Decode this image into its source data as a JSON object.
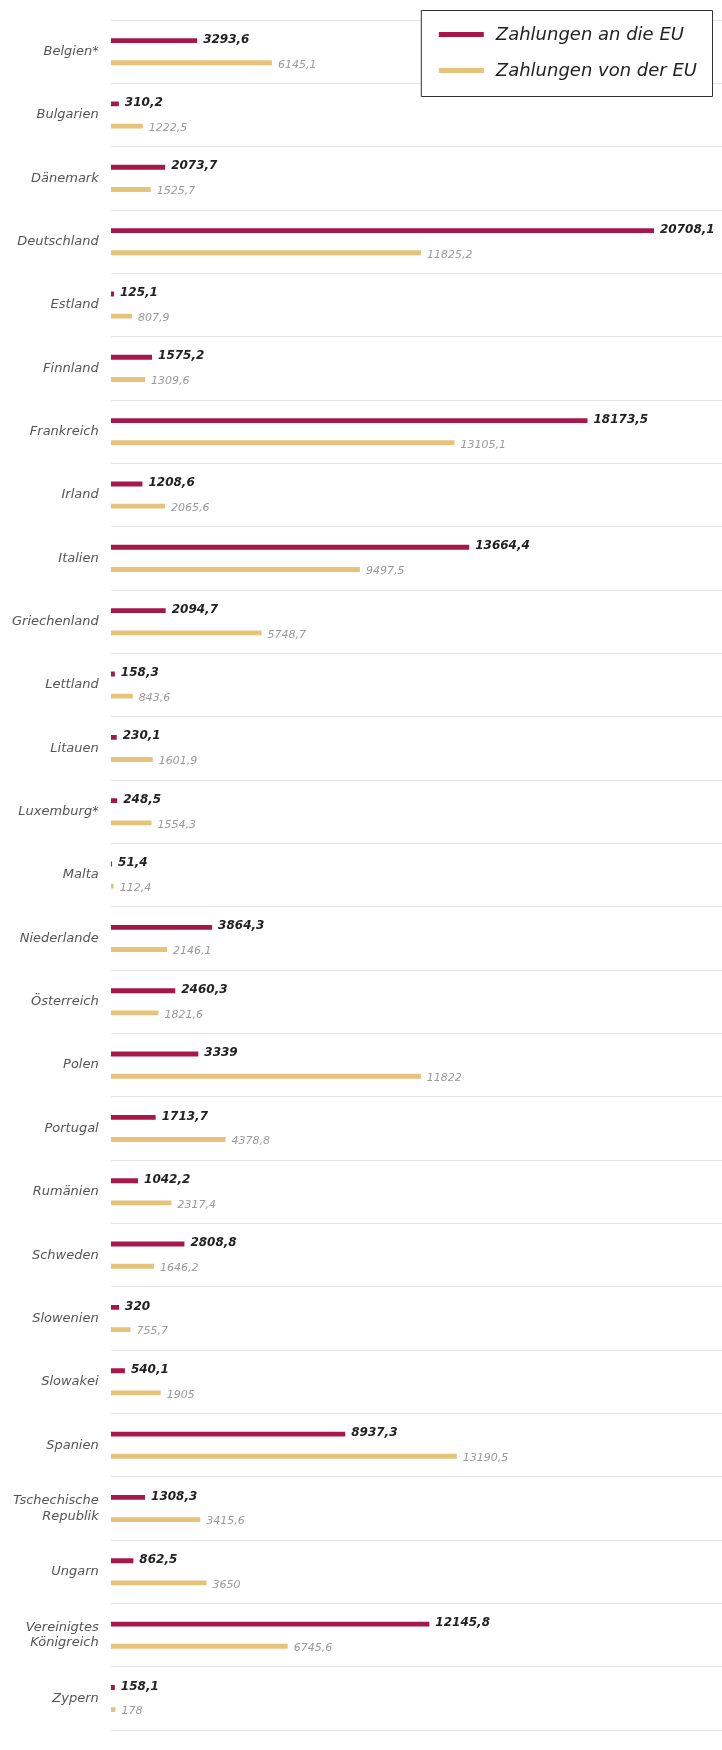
{
  "chart_data": {
    "type": "bar",
    "orientation": "horizontal",
    "categories": [
      "Belgien*",
      "Bulgarien",
      "Dänemark",
      "Deutschland",
      "Estland",
      "Finnland",
      "Frankreich",
      "Irland",
      "Italien",
      "Griechenland",
      "Lettland",
      "Litauen",
      "Luxemburg*",
      "Malta",
      "Niederlande",
      "Österreich",
      "Polen",
      "Portugal",
      "Rumänien",
      "Schweden",
      "Slowenien",
      "Slowakei",
      "Spanien",
      "Tschechische Republik",
      "Ungarn",
      "Vereinigtes Königreich",
      "Zypern"
    ],
    "series": [
      {
        "name": "Zahlungen an die EU",
        "color": "#a8174a",
        "values": [
          3293.6,
          310.2,
          2073.7,
          20708.1,
          125.1,
          1575.2,
          18173.5,
          1208.6,
          13664.4,
          2094.7,
          158.3,
          230.1,
          248.5,
          51.4,
          3864.3,
          2460.3,
          3339,
          1713.7,
          1042.2,
          2808.8,
          320,
          540.1,
          8937.3,
          1308.3,
          862.5,
          12145.8,
          158.1
        ],
        "value_labels": [
          "3293,6",
          "310,2",
          "2073,7",
          "20708,1",
          "125,1",
          "1575,2",
          "18173,5",
          "1208,6",
          "13664,4",
          "2094,7",
          "158,3",
          "230,1",
          "248,5",
          "51,4",
          "3864,3",
          "2460,3",
          "3339",
          "1713,7",
          "1042,2",
          "2808,8",
          "320",
          "540,1",
          "8937,3",
          "1308,3",
          "862,5",
          "12145,8",
          "158,1"
        ]
      },
      {
        "name": "Zahlungen von der EU",
        "color": "#e6c27a",
        "values": [
          6145.1,
          1222.5,
          1525.7,
          11825.2,
          807.9,
          1309.6,
          13105.1,
          2065.6,
          9497.5,
          5748.7,
          843.6,
          1601.9,
          1554.3,
          112.4,
          2146.1,
          1821.6,
          11822,
          4378.8,
          2317.4,
          1646.2,
          755.7,
          1905,
          13190.5,
          3415.6,
          3650,
          6745.6,
          178
        ],
        "value_labels": [
          "6145,1",
          "1222,5",
          "1525,7",
          "11825,2",
          "807,9",
          "1309,6",
          "13105,1",
          "2065,6",
          "9497,5",
          "5748,7",
          "843,6",
          "1601,9",
          "1554,3",
          "112,4",
          "2146,1",
          "1821,6",
          "11822",
          "4378,8",
          "2317,4",
          "1646,2",
          "755,7",
          "1905",
          "13190,5",
          "3415,6",
          "3650",
          "6745,6",
          "178"
        ]
      }
    ],
    "xlim": [
      0,
      23300
    ],
    "tick_labels": "y",
    "grid": "y",
    "legend": "top right"
  }
}
